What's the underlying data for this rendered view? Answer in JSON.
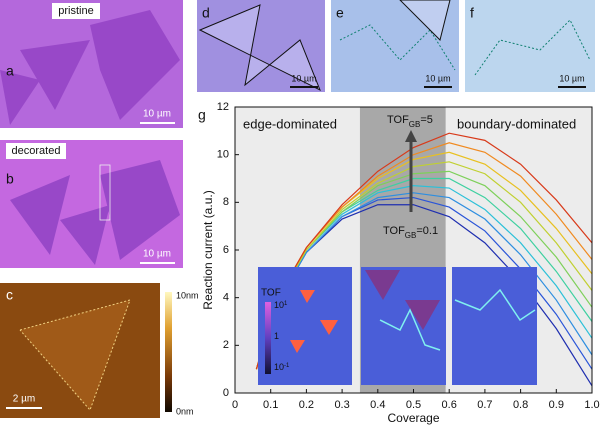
{
  "panels": {
    "a": {
      "label": "a",
      "tag": "pristine",
      "scale": "10 µm"
    },
    "b": {
      "label": "b",
      "tag": "decorated",
      "scale": "10 µm"
    },
    "c": {
      "label": "c",
      "scale": "2 µm",
      "bar_top": "10nm",
      "bar_bottom": "0nm"
    },
    "d": {
      "label": "d",
      "scale": "10 µm"
    },
    "e": {
      "label": "e",
      "scale": "10 µm"
    },
    "f": {
      "label": "f",
      "scale": "10 µm"
    }
  },
  "chart_data": {
    "type": "line",
    "label": "g",
    "xlabel": "Coverage",
    "ylabel": "Reaction current (a.u.)",
    "annotations": [
      "edge-dominated",
      "boundary-dominated"
    ],
    "tof_high": {
      "main": "TOF",
      "sub": "GB",
      "tail": "=5"
    },
    "tof_low": {
      "main": "TOF",
      "sub": "GB",
      "tail": "=0.1"
    },
    "inset_colorbar": {
      "title": "TOF",
      "ticks": [
        {
          "base": "10",
          "exp": "1"
        },
        {
          "base": "1",
          "exp": ""
        },
        {
          "base": "10",
          "exp": "-1"
        }
      ]
    },
    "highlight_span": [
      0.35,
      0.59
    ],
    "xlim": [
      0,
      1
    ],
    "ylim": [
      0,
      12
    ],
    "xticks": [
      0,
      0.1,
      0.2,
      0.3,
      0.4,
      0.5,
      0.6,
      0.7,
      0.8,
      0.9,
      {
        "value": 1,
        "label": "1.0"
      }
    ],
    "yticks": [
      0,
      2,
      4,
      6,
      8,
      10,
      12
    ],
    "x": [
      0.06,
      0.1,
      0.15,
      0.2,
      0.3,
      0.4,
      0.5,
      0.6,
      0.7,
      0.8,
      0.9,
      1.0
    ],
    "series": [
      {
        "color": "#1f2fb0",
        "values": [
          1.0,
          3.0,
          4.6,
          5.9,
          7.3,
          7.9,
          7.9,
          7.4,
          6.3,
          4.7,
          2.7,
          0.3
        ]
      },
      {
        "color": "#2a55d8",
        "values": [
          1.0,
          3.0,
          4.6,
          5.9,
          7.4,
          8.1,
          8.2,
          7.8,
          6.8,
          5.2,
          3.3,
          1.0
        ]
      },
      {
        "color": "#2e8ee0",
        "values": [
          1.0,
          3.0,
          4.6,
          5.9,
          7.4,
          8.2,
          8.4,
          8.2,
          7.3,
          5.8,
          3.9,
          1.6
        ]
      },
      {
        "color": "#2cc0d8",
        "values": [
          1.0,
          3.0,
          4.7,
          6.0,
          7.5,
          8.4,
          8.7,
          8.6,
          7.7,
          6.3,
          4.5,
          2.3
        ]
      },
      {
        "color": "#3ed0a0",
        "values": [
          1.0,
          3.0,
          4.7,
          6.0,
          7.6,
          8.5,
          9.0,
          9.0,
          8.2,
          6.9,
          5.1,
          3.0
        ]
      },
      {
        "color": "#7ed05a",
        "values": [
          1.0,
          3.1,
          4.7,
          6.0,
          7.6,
          8.7,
          9.2,
          9.3,
          8.7,
          7.4,
          5.7,
          3.6
        ]
      },
      {
        "color": "#c0d030",
        "values": [
          1.0,
          3.1,
          4.7,
          6.0,
          7.7,
          8.8,
          9.5,
          9.7,
          9.2,
          8.0,
          6.3,
          4.3
        ]
      },
      {
        "color": "#e8c020",
        "values": [
          1.0,
          3.1,
          4.8,
          6.1,
          7.8,
          9.0,
          9.8,
          10.1,
          9.6,
          8.5,
          6.9,
          5.0
        ]
      },
      {
        "color": "#f08a20",
        "values": [
          1.0,
          3.1,
          4.8,
          6.1,
          7.8,
          9.1,
          10.0,
          10.5,
          10.1,
          9.1,
          7.5,
          5.6
        ]
      },
      {
        "color": "#d83a1a",
        "values": [
          1.0,
          3.1,
          4.8,
          6.1,
          7.9,
          9.3,
          10.3,
          10.9,
          10.6,
          9.6,
          8.1,
          6.3
        ]
      }
    ]
  }
}
